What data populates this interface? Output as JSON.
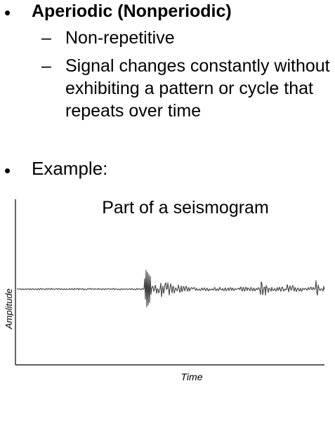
{
  "bullets": {
    "aperiodic": {
      "marker": "•",
      "heading": "Aperiodic (Nonperiodic)",
      "sub_items": [
        {
          "marker": "–",
          "lines": [
            "Non-repetitive"
          ]
        },
        {
          "marker": "–",
          "lines": [
            "Signal changes constantly without",
            "exhibiting a pattern or cycle that",
            "repeats over time"
          ]
        }
      ]
    },
    "example": {
      "marker": "•",
      "label": "Example:"
    }
  },
  "figure": {
    "title": "Part of a seismogram",
    "ylabel": "Amplitude",
    "xlabel": "Time",
    "line_color": "#404040",
    "axis_color": "#000000"
  }
}
